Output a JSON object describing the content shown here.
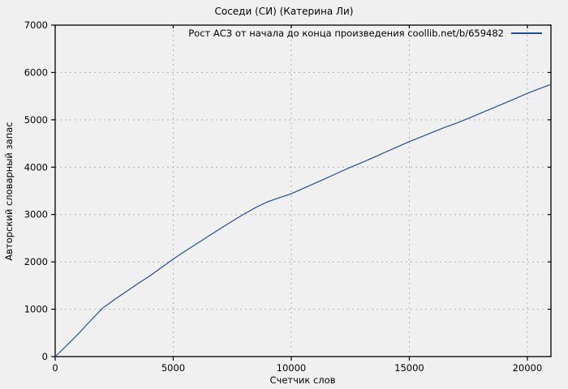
{
  "chart": {
    "title": "Соседи (СИ) (Катерина Ли)",
    "legend_label": "Рост АСЗ от начала до конца произведения coollib.net/b/659482",
    "xlabel": "Счетчик слов",
    "ylabel": "Авторский словарный запас"
  },
  "colors": {
    "background": "#f0f0f0",
    "line": "#1f4f9c",
    "grid": "#b0b0b0",
    "axis": "#000000",
    "text": "#000000"
  },
  "chart_data": {
    "type": "line",
    "title": "Соседи (СИ) (Катерина Ли)",
    "xlabel": "Счетчик слов",
    "ylabel": "Авторский словарный запас",
    "xlim": [
      0,
      21000
    ],
    "ylim": [
      0,
      7000
    ],
    "xticks": [
      0,
      5000,
      10000,
      15000,
      20000
    ],
    "yticks": [
      0,
      1000,
      2000,
      3000,
      4000,
      5000,
      6000,
      7000
    ],
    "grid": true,
    "legend_position": "top-right",
    "series": [
      {
        "name": "Рост АСЗ от начала до конца произведения coollib.net/b/659482",
        "color": "#1f4f9c",
        "points": [
          [
            0,
            0
          ],
          [
            500,
            240
          ],
          [
            1000,
            490
          ],
          [
            1500,
            760
          ],
          [
            2000,
            1020
          ],
          [
            2500,
            1200
          ],
          [
            3000,
            1370
          ],
          [
            3500,
            1540
          ],
          [
            4000,
            1700
          ],
          [
            4500,
            1880
          ],
          [
            5000,
            2060
          ],
          [
            5500,
            2225
          ],
          [
            6000,
            2385
          ],
          [
            6500,
            2545
          ],
          [
            7000,
            2705
          ],
          [
            7500,
            2860
          ],
          [
            8000,
            3010
          ],
          [
            8500,
            3150
          ],
          [
            9000,
            3270
          ],
          [
            9500,
            3355
          ],
          [
            10000,
            3440
          ],
          [
            10500,
            3550
          ],
          [
            11000,
            3660
          ],
          [
            11500,
            3770
          ],
          [
            12000,
            3885
          ],
          [
            12500,
            3995
          ],
          [
            13000,
            4100
          ],
          [
            13500,
            4210
          ],
          [
            14000,
            4320
          ],
          [
            14500,
            4430
          ],
          [
            15000,
            4540
          ],
          [
            15500,
            4640
          ],
          [
            16000,
            4740
          ],
          [
            16500,
            4840
          ],
          [
            17000,
            4930
          ],
          [
            17500,
            5030
          ],
          [
            18000,
            5135
          ],
          [
            18500,
            5240
          ],
          [
            19000,
            5345
          ],
          [
            19500,
            5450
          ],
          [
            20000,
            5560
          ],
          [
            20500,
            5655
          ],
          [
            21000,
            5750
          ]
        ]
      }
    ]
  }
}
